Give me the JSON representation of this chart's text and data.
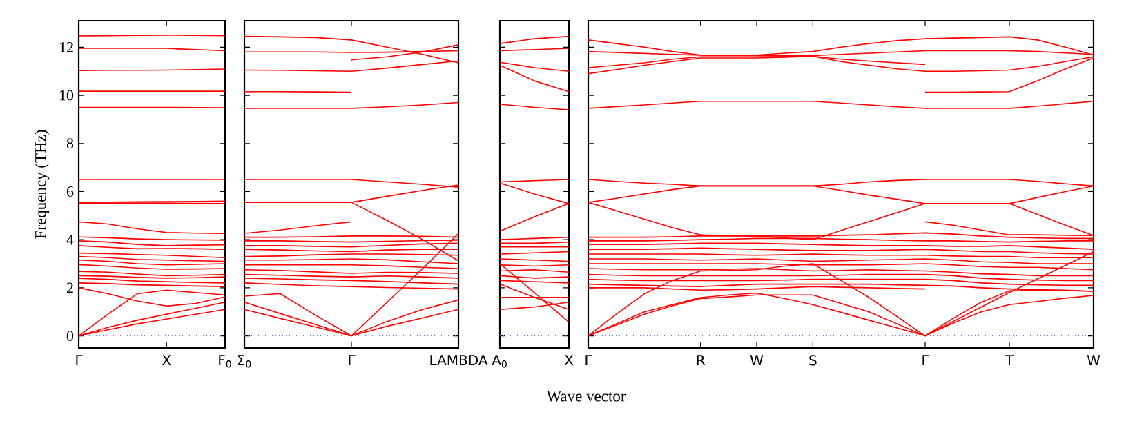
{
  "chart_data": [
    {
      "type": "line",
      "ylabel": "Frequency (THz)",
      "color": "#ff0000",
      "ylim": [
        -0.5,
        13.1
      ],
      "categories": [
        "Γ",
        null,
        null,
        "X",
        null,
        "F$_{0}$"
      ],
      "yticks": [
        0,
        2,
        4,
        6,
        8,
        10,
        12
      ],
      "ref_lines": [
        {
          "axis": "y",
          "value": 0,
          "color": "#6666ff",
          "line_style": "dotted"
        }
      ],
      "series": [
        {
          "values": [
            12.47,
            12.48,
            12.49,
            12.5,
            12.49,
            12.48
          ]
        },
        {
          "values": [
            11.95,
            11.95,
            11.95,
            11.95,
            11.9,
            11.85
          ]
        },
        {
          "values": [
            11.03,
            11.04,
            11.04,
            11.05,
            11.07,
            11.09
          ]
        },
        {
          "values": [
            10.17,
            10.17,
            10.17,
            10.17,
            10.17,
            10.17
          ]
        },
        {
          "values": [
            9.5,
            9.5,
            9.5,
            9.5,
            9.49,
            9.48
          ]
        },
        {
          "values": [
            6.5,
            6.5,
            6.5,
            6.5,
            6.5,
            6.5
          ]
        },
        {
          "values": [
            5.55,
            5.56,
            5.57,
            5.58,
            5.59,
            5.6
          ]
        },
        {
          "values": [
            5.52,
            5.52,
            5.52,
            5.52,
            5.51,
            5.5
          ]
        },
        {
          "values": [
            4.74,
            4.65,
            4.45,
            4.3,
            4.27,
            4.26
          ]
        },
        {
          "values": [
            4.11,
            4.08,
            4.03,
            4.0,
            3.99,
            3.98
          ]
        },
        {
          "values": [
            3.95,
            3.9,
            3.8,
            3.75,
            3.77,
            3.78
          ]
        },
        {
          "values": [
            3.75,
            3.68,
            3.62,
            3.63,
            3.62,
            3.6
          ]
        },
        {
          "values": [
            3.44,
            3.42,
            3.38,
            3.35,
            3.3,
            3.25
          ]
        },
        {
          "values": [
            3.3,
            3.25,
            3.18,
            3.15,
            3.12,
            3.1
          ]
        },
        {
          "values": [
            3.15,
            3.1,
            3.0,
            2.95,
            2.97,
            3.0
          ]
        },
        {
          "values": [
            2.96,
            2.9,
            2.82,
            2.77,
            2.78,
            2.8
          ]
        },
        {
          "values": [
            2.68,
            2.65,
            2.57,
            2.5,
            2.52,
            2.55
          ]
        },
        {
          "values": [
            2.5,
            2.48,
            2.43,
            2.4,
            2.42,
            2.45
          ]
        },
        {
          "values": [
            2.39,
            2.35,
            2.28,
            2.25,
            2.22,
            2.2
          ]
        },
        {
          "values": [
            2.2,
            2.17,
            2.12,
            2.1,
            2.07,
            2.05
          ]
        },
        {
          "values": [
            2.0,
            1.75,
            1.45,
            1.24,
            1.35,
            1.62
          ]
        },
        {
          "values": [
            0,
            0.9,
            1.75,
            1.9,
            1.8,
            1.7
          ]
        },
        {
          "values": [
            0,
            0.35,
            0.65,
            0.9,
            1.15,
            1.4
          ]
        },
        {
          "values": [
            0,
            0.25,
            0.5,
            0.7,
            0.9,
            1.1
          ]
        }
      ]
    },
    {
      "type": "line",
      "color": "#ff0000",
      "ylim": [
        -0.5,
        13.1
      ],
      "tick_labels": "x",
      "categories": [
        "Σ$_{0}$",
        null,
        null,
        "Γ",
        null,
        null,
        "LAMBDA"
      ],
      "yticks": [
        0,
        2,
        4,
        6,
        8,
        10,
        12
      ],
      "ref_lines": [
        {
          "axis": "y",
          "value": 0,
          "color": "#6666ff",
          "line_style": "dotted"
        }
      ],
      "series": [
        {
          "values": [
            12.45,
            12.43,
            12.4,
            12.3,
            12.0,
            11.7,
            11.35
          ]
        },
        {
          "values": [
            11.8,
            11.8,
            11.8,
            11.78,
            11.79,
            11.82,
            11.85
          ]
        },
        {
          "values": [
            11.05,
            11.04,
            11.02,
            11.0,
            11.13,
            11.28,
            11.43
          ]
        },
        {
          "values": [
            10.15,
            10.15,
            10.14,
            10.13,
            null,
            null,
            null
          ]
        },
        {
          "values": [
            null,
            null,
            null,
            11.47,
            11.6,
            11.8,
            12.1
          ]
        },
        {
          "values": [
            9.46,
            9.46,
            9.46,
            9.46,
            9.52,
            9.6,
            9.7
          ]
        },
        {
          "values": [
            6.5,
            6.5,
            6.5,
            6.5,
            6.4,
            6.3,
            6.18
          ]
        },
        {
          "values": [
            5.55,
            5.55,
            5.55,
            5.55,
            5.8,
            6.05,
            6.27
          ]
        },
        {
          "values": [
            null,
            null,
            null,
            5.55,
            4.8,
            4.0,
            3.12
          ]
        },
        {
          "values": [
            4.26,
            4.4,
            4.58,
            4.74,
            null,
            null,
            null
          ]
        },
        {
          "values": [
            4.1,
            4.1,
            4.12,
            4.15,
            4.15,
            4.14,
            4.1
          ]
        },
        {
          "values": [
            3.95,
            3.95,
            3.92,
            3.9,
            3.93,
            3.96,
            3.98
          ]
        },
        {
          "values": [
            3.75,
            3.75,
            3.72,
            3.7,
            3.76,
            3.82,
            3.85
          ]
        },
        {
          "values": [
            3.6,
            3.57,
            3.53,
            3.5,
            3.57,
            3.6,
            3.6
          ]
        },
        {
          "values": [
            3.3,
            3.32,
            3.37,
            3.4,
            3.4,
            3.38,
            3.35
          ]
        },
        {
          "values": [
            3.15,
            3.15,
            3.17,
            3.2,
            3.16,
            3.08,
            3.0
          ]
        },
        {
          "values": [
            2.95,
            2.95,
            2.95,
            2.95,
            2.91,
            2.85,
            2.8
          ]
        },
        {
          "values": [
            2.75,
            2.72,
            2.66,
            2.6,
            2.64,
            2.63,
            2.6
          ]
        },
        {
          "values": [
            2.55,
            2.52,
            2.48,
            2.45,
            2.49,
            2.45,
            2.4
          ]
        },
        {
          "values": [
            2.4,
            2.37,
            2.33,
            2.3,
            2.26,
            2.2,
            2.15
          ]
        },
        {
          "values": [
            2.2,
            2.14,
            2.08,
            2.05,
            2.01,
            1.98,
            1.95
          ]
        },
        {
          "values": [
            1.65,
            1.76,
            0.85,
            0,
            null,
            null,
            null
          ]
        },
        {
          "values": [
            1.4,
            0.93,
            0.47,
            0,
            null,
            null,
            null
          ]
        },
        {
          "values": [
            1.1,
            0.73,
            0.37,
            0,
            null,
            null,
            null
          ]
        },
        {
          "values": [
            null,
            null,
            null,
            0,
            1.4,
            2.8,
            4.25
          ]
        },
        {
          "values": [
            null,
            null,
            null,
            0,
            0.6,
            1.1,
            1.49
          ]
        },
        {
          "values": [
            null,
            null,
            null,
            0,
            0.4,
            0.75,
            1.1
          ]
        }
      ]
    },
    {
      "type": "line",
      "color": "#ff0000",
      "ylim": [
        -0.5,
        13.1
      ],
      "tick_labels": "x",
      "categories": [
        "A$_{0}$",
        null,
        "X"
      ],
      "yticks": [
        0,
        2,
        4,
        6,
        8,
        10,
        12
      ],
      "ref_lines": [
        {
          "axis": "y",
          "value": 0,
          "color": "#6666ff",
          "line_style": "dotted"
        }
      ],
      "series": [
        {
          "values": [
            12.15,
            12.35,
            12.45
          ]
        },
        {
          "values": [
            11.85,
            11.9,
            11.95
          ]
        },
        {
          "values": [
            11.37,
            11.15,
            11.0
          ]
        },
        {
          "values": [
            11.25,
            10.6,
            10.15
          ]
        },
        {
          "values": [
            9.63,
            9.5,
            9.4
          ]
        },
        {
          "values": [
            6.4,
            6.45,
            6.5
          ]
        },
        {
          "values": [
            6.35,
            5.9,
            5.5
          ]
        },
        {
          "values": [
            4.35,
            4.95,
            5.5
          ]
        },
        {
          "values": [
            4.0,
            4.05,
            4.1
          ]
        },
        {
          "values": [
            3.85,
            3.85,
            3.9
          ]
        },
        {
          "values": [
            3.7,
            3.7,
            3.7
          ]
        },
        {
          "values": [
            3.4,
            3.45,
            3.5
          ]
        },
        {
          "values": [
            3.2,
            3.15,
            3.1
          ]
        },
        {
          "values": [
            2.95,
            2.9,
            2.95
          ]
        },
        {
          "values": [
            2.7,
            2.75,
            2.65
          ]
        },
        {
          "values": [
            2.5,
            2.4,
            2.45
          ]
        },
        {
          "values": [
            2.3,
            2.25,
            2.2
          ]
        },
        {
          "values": [
            3.0,
            1.8,
            0.57
          ]
        },
        {
          "values": [
            2.15,
            1.6,
            1.1
          ]
        },
        {
          "values": [
            1.6,
            1.6,
            1.6
          ]
        },
        {
          "values": [
            1.1,
            1.2,
            1.4
          ]
        }
      ]
    },
    {
      "type": "line",
      "xlabel": "Wave vector",
      "color": "#ff0000",
      "ylim": [
        -0.5,
        13.1
      ],
      "tick_labels": "x",
      "categories": [
        "Γ",
        null,
        null,
        null,
        "R",
        null,
        "W",
        null,
        "S",
        null,
        null,
        null,
        "Γ",
        null,
        null,
        "T",
        null,
        null,
        "W"
      ],
      "yticks": [
        0,
        2,
        4,
        6,
        8,
        10,
        12
      ],
      "ref_lines": [
        {
          "axis": "y",
          "value": 0,
          "color": "#6666ff",
          "line_style": "dotted"
        }
      ],
      "series": [
        {
          "values": [
            12.3,
            12.15,
            12.0,
            11.82,
            11.67,
            11.67,
            11.67,
            11.75,
            11.82,
            12.0,
            12.15,
            12.27,
            12.35,
            12.38,
            12.4,
            12.43,
            12.3,
            12.0,
            11.67
          ]
        },
        {
          "values": [
            11.82,
            11.78,
            11.74,
            11.7,
            11.67,
            11.66,
            11.65,
            11.65,
            11.65,
            11.7,
            11.75,
            11.8,
            11.85,
            11.85,
            11.85,
            11.85,
            11.82,
            11.76,
            11.7
          ]
        },
        {
          "values": [
            11.15,
            11.25,
            11.35,
            11.5,
            11.6,
            11.6,
            11.6,
            11.61,
            11.62,
            11.5,
            11.42,
            11.35,
            11.28,
            null,
            null,
            null,
            null,
            null,
            null
          ]
        },
        {
          "values": [
            10.9,
            11.07,
            11.25,
            11.4,
            11.55,
            11.55,
            11.55,
            11.58,
            11.62,
            11.4,
            11.25,
            11.1,
            11.0,
            11.0,
            11.02,
            11.05,
            11.2,
            11.4,
            11.6
          ]
        },
        {
          "values": [
            null,
            null,
            null,
            null,
            null,
            null,
            null,
            null,
            null,
            null,
            null,
            null,
            10.13,
            10.13,
            10.14,
            10.15,
            10.6,
            11.1,
            11.55
          ]
        },
        {
          "values": [
            9.46,
            9.53,
            9.6,
            9.68,
            9.75,
            9.75,
            9.75,
            9.75,
            9.75,
            9.68,
            9.6,
            9.52,
            9.46,
            9.46,
            9.46,
            9.46,
            9.55,
            9.65,
            9.75
          ]
        },
        {
          "values": [
            6.5,
            6.42,
            6.35,
            6.3,
            6.23,
            6.23,
            6.23,
            6.23,
            6.23,
            6.3,
            6.4,
            6.46,
            6.5,
            6.5,
            6.5,
            6.5,
            6.42,
            6.32,
            6.23
          ]
        },
        {
          "values": [
            5.55,
            5.72,
            5.9,
            6.08,
            6.23,
            6.23,
            6.23,
            6.23,
            6.23,
            6.05,
            5.85,
            5.68,
            5.5,
            5.5,
            5.5,
            5.5,
            5.75,
            6.0,
            6.23
          ]
        },
        {
          "values": [
            5.55,
            5.2,
            4.85,
            4.5,
            4.2,
            4.17,
            4.15,
            4.07,
            4.0,
            4.38,
            4.75,
            5.12,
            5.5,
            5.5,
            5.5,
            5.5,
            5.05,
            4.6,
            4.17
          ]
        },
        {
          "values": [
            null,
            null,
            null,
            null,
            null,
            null,
            null,
            null,
            null,
            null,
            null,
            null,
            4.74,
            4.6,
            4.4,
            4.2,
            4.2,
            4.18,
            4.17
          ]
        },
        {
          "values": [
            4.1,
            4.1,
            4.1,
            4.12,
            4.15,
            4.15,
            4.15,
            4.15,
            4.15,
            4.18,
            4.2,
            4.24,
            4.28,
            4.23,
            4.15,
            4.1,
            4.07,
            4.05,
            4.05
          ]
        },
        {
          "values": [
            3.95,
            3.95,
            3.95,
            3.97,
            4.0,
            4.02,
            4.05,
            4.05,
            4.05,
            4.02,
            4.0,
            3.97,
            3.95,
            3.95,
            3.92,
            3.9,
            3.93,
            3.95,
            3.95
          ]
        },
        {
          "values": [
            3.8,
            3.8,
            3.8,
            3.82,
            3.85,
            3.85,
            3.85,
            3.82,
            3.8,
            3.77,
            3.75,
            3.75,
            3.75,
            3.72,
            3.72,
            3.75,
            3.7,
            3.65,
            3.6
          ]
        },
        {
          "values": [
            3.6,
            3.6,
            3.6,
            3.62,
            3.65,
            3.62,
            3.6,
            3.57,
            3.55,
            3.55,
            3.55,
            3.57,
            3.6,
            3.55,
            3.5,
            3.5,
            3.45,
            3.42,
            3.4
          ]
        },
        {
          "values": [
            3.4,
            3.4,
            3.4,
            3.4,
            3.4,
            3.37,
            3.35,
            3.37,
            3.4,
            3.37,
            3.35,
            3.35,
            3.35,
            3.32,
            3.3,
            3.3,
            3.25,
            3.25,
            3.25
          ]
        },
        {
          "values": [
            3.2,
            3.2,
            3.2,
            3.17,
            3.15,
            3.17,
            3.2,
            3.15,
            3.1,
            3.12,
            3.15,
            3.17,
            3.2,
            3.15,
            3.08,
            3.05,
            3.0,
            3.0,
            3.0
          ]
        },
        {
          "values": [
            3.0,
            3.0,
            3.0,
            3.0,
            3.0,
            3.0,
            3.0,
            2.97,
            2.95,
            2.95,
            2.95,
            2.97,
            3.0,
            2.95,
            2.88,
            2.85,
            2.85,
            2.8,
            2.75
          ]
        },
        {
          "values": [
            2.8,
            2.77,
            2.75,
            2.75,
            2.75,
            2.77,
            2.8,
            2.75,
            2.7,
            2.72,
            2.75,
            2.72,
            2.7,
            2.65,
            2.58,
            2.55,
            2.5,
            2.5,
            2.5
          ]
        },
        {
          "values": [
            2.55,
            2.52,
            2.5,
            2.5,
            2.5,
            2.5,
            2.5,
            2.5,
            2.5,
            2.52,
            2.55,
            2.55,
            2.55,
            2.5,
            2.4,
            2.35,
            2.32,
            2.3,
            2.3
          ]
        },
        {
          "values": [
            2.35,
            2.32,
            2.3,
            2.3,
            2.3,
            2.3,
            2.3,
            2.32,
            2.35,
            2.35,
            2.35,
            2.35,
            2.35,
            2.3,
            2.2,
            2.15,
            2.12,
            2.1,
            2.1
          ]
        },
        {
          "values": [
            2.15,
            2.12,
            2.1,
            2.07,
            2.05,
            2.1,
            2.15,
            2.15,
            2.15,
            2.15,
            2.15,
            2.12,
            2.1,
            2.07,
            2.0,
            1.95,
            1.92,
            1.9,
            1.85
          ]
        },
        {
          "values": [
            2.0,
            2.0,
            2.0,
            1.95,
            1.9,
            1.92,
            1.95,
            2.0,
            2.05,
            2.02,
            2.0,
            1.97,
            1.95,
            null,
            null,
            null,
            null,
            null,
            null
          ]
        },
        {
          "values": [
            0,
            0.9,
            1.75,
            2.3,
            2.7,
            2.72,
            2.75,
            2.9,
            3.0,
            2.3,
            1.6,
            0.8,
            0,
            0.6,
            1.2,
            1.8,
            2.37,
            2.93,
            3.5
          ]
        },
        {
          "values": [
            0,
            0.5,
            1.0,
            1.3,
            1.59,
            1.7,
            1.78,
            1.55,
            1.3,
            0.98,
            0.65,
            0.33,
            0,
            0.53,
            1.0,
            1.3,
            1.43,
            1.57,
            1.68
          ]
        },
        {
          "values": [
            0,
            0.45,
            0.9,
            1.25,
            1.55,
            1.62,
            1.7,
            1.7,
            1.7,
            1.35,
            1.0,
            0.5,
            0,
            0.73,
            1.4,
            1.87,
            1.9,
            1.88,
            1.85
          ]
        }
      ]
    }
  ]
}
